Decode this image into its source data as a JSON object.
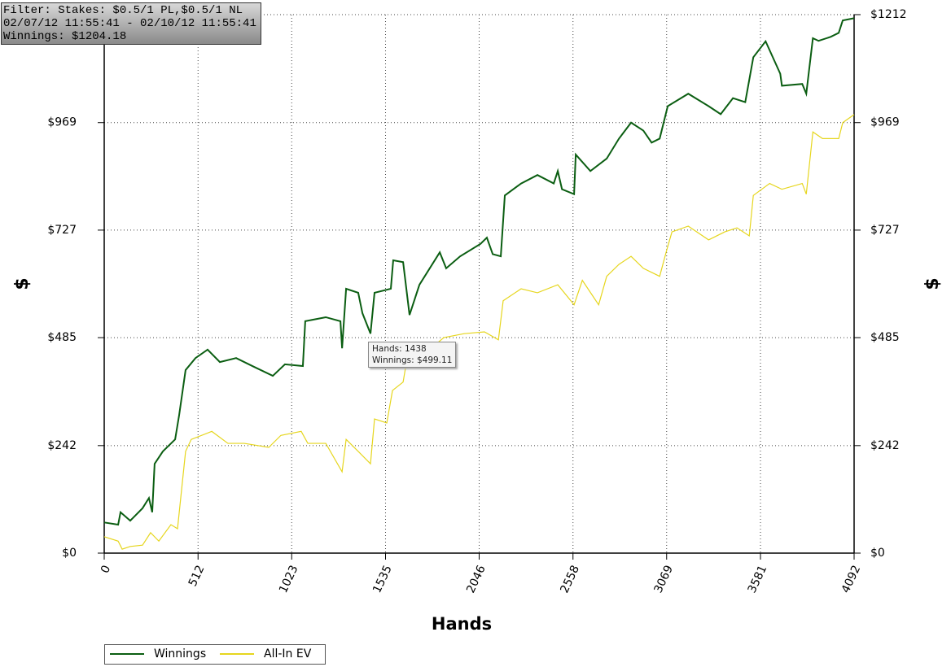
{
  "chart_data": {
    "type": "line",
    "x_label": "Hands",
    "y_label": "$",
    "info_box": [
      "Filter: Stakes: $0.5/1 PL,$0.5/1 NL",
      "02/07/12 11:55:41 - 02/10/12 11:55:41",
      "Winnings: $1204.18"
    ],
    "tooltip": [
      "Hands: 1438",
      "Winnings: $499.11"
    ],
    "xlim": [
      0,
      4092
    ],
    "xticks": [
      0,
      512,
      1023,
      1535,
      2046,
      2558,
      3069,
      3581,
      4092
    ],
    "ylim": [
      0,
      1212
    ],
    "yticks": [
      {
        "value": 0,
        "label": "$0"
      },
      {
        "value": 242,
        "label": "$242"
      },
      {
        "value": 485,
        "label": "$485"
      },
      {
        "value": 727,
        "label": "$727"
      },
      {
        "value": 969,
        "label": "$969"
      },
      {
        "value": 1212,
        "label": "$1212"
      }
    ],
    "grid": true,
    "legend": "bottom-left",
    "series": [
      {
        "name": "Winnings",
        "color": "#0b5e12",
        "x": [
          0,
          76,
          89,
          142,
          209,
          244,
          262,
          275,
          320,
          387,
          409,
          444,
          498,
          564,
          631,
          720,
          809,
          920,
          986,
          1084,
          1097,
          1209,
          1289,
          1298,
          1320,
          1386,
          1409,
          1453,
          1475,
          1564,
          1577,
          1631,
          1666,
          1720,
          1831,
          1866,
          1942,
          2053,
          2088,
          2120,
          2164,
          2186,
          2275,
          2364,
          2453,
          2475,
          2498,
          2564,
          2573,
          2653,
          2742,
          2809,
          2875,
          2942,
          2987,
          3031,
          3075,
          3187,
          3298,
          3364,
          3431,
          3498,
          3542,
          3609,
          3689,
          3698,
          3809,
          3831,
          3867,
          3898,
          3964,
          4008,
          4030,
          4092
        ],
        "values": [
          69,
          64,
          92,
          73,
          101,
          124,
          92,
          201,
          229,
          256,
          311,
          412,
          439,
          458,
          430,
          439,
          421,
          399,
          425,
          421,
          522,
          531,
          522,
          461,
          595,
          586,
          540,
          494,
          586,
          595,
          659,
          655,
          536,
          604,
          677,
          641,
          668,
          696,
          710,
          673,
          668,
          805,
          832,
          851,
          832,
          860,
          819,
          808,
          897,
          860,
          888,
          933,
          969,
          951,
          924,
          933,
          1006,
          1034,
          1006,
          988,
          1024,
          1015,
          1116,
          1152,
          1079,
          1052,
          1056,
          1034,
          1159,
          1153,
          1162,
          1171,
          1199,
          1204
        ]
      },
      {
        "name": "All-In EV",
        "color": "#e6d61e",
        "x": [
          0,
          76,
          98,
          142,
          209,
          253,
          298,
          364,
          400,
          444,
          475,
          587,
          675,
          764,
          898,
          964,
          1075,
          1111,
          1209,
          1298,
          1320,
          1386,
          1453,
          1475,
          1542,
          1573,
          1631,
          1653,
          1720,
          1853,
          1964,
          2075,
          2151,
          2177,
          2275,
          2364,
          2475,
          2564,
          2609,
          2698,
          2742,
          2809,
          2875,
          2942,
          3031,
          3066,
          3098,
          3187,
          3298,
          3386,
          3453,
          3520,
          3542,
          3631,
          3698,
          3809,
          3831,
          3867,
          3920,
          4008,
          4030,
          4092
        ],
        "values": [
          37,
          27,
          9,
          15,
          18,
          46,
          27,
          64,
          55,
          229,
          256,
          274,
          247,
          247,
          238,
          265,
          274,
          247,
          247,
          183,
          256,
          229,
          201,
          302,
          293,
          366,
          385,
          439,
          439,
          485,
          494,
          498,
          480,
          568,
          595,
          586,
          604,
          559,
          614,
          559,
          623,
          650,
          668,
          641,
          623,
          677,
          723,
          736,
          705,
          723,
          732,
          714,
          805,
          832,
          819,
          832,
          808,
          948,
          933,
          933,
          969,
          987
        ]
      }
    ]
  }
}
